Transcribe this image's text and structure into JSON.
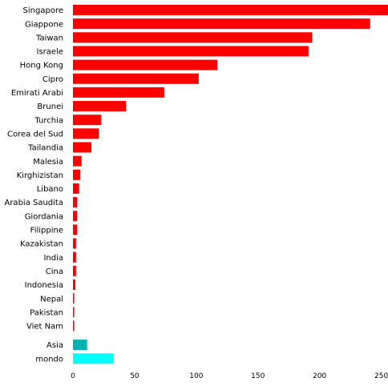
{
  "chart_data": {
    "type": "bar",
    "orientation": "horizontal",
    "title": "",
    "xlabel": "",
    "ylabel": "",
    "xlim": [
      0,
      260
    ],
    "grid": false,
    "legend": "none",
    "x_ticks": [
      "0",
      "50",
      "100",
      "150",
      "200",
      "250"
    ],
    "categories": [
      "Singapore",
      "Giappone",
      "Taiwan",
      "Israele",
      "Hong Kong",
      "Cipro",
      "Emirati Arabi",
      "Brunei",
      "Turchia",
      "Corea del Sud",
      "Tailandia",
      "Malesia",
      "Kirghizistan",
      "Libano",
      "Arabia Saudita",
      "Giordania",
      "Filippine",
      "Kazakistan",
      "India",
      "Cina",
      "Indonesia",
      "Nepal",
      "Pakistan",
      "Viet Nam",
      "Asia",
      "mondo"
    ],
    "values": [
      258,
      241,
      194,
      191,
      117,
      102,
      74,
      43,
      23,
      21,
      15,
      7,
      6,
      5,
      3.5,
      3.5,
      3.5,
      2.5,
      2.5,
      2.5,
      2,
      1,
      1,
      1,
      11.5,
      33
    ],
    "colors": [
      "#ff0000",
      "#ff0000",
      "#ff0000",
      "#ff0000",
      "#ff0000",
      "#ff0000",
      "#ff0000",
      "#ff0000",
      "#ff0000",
      "#ff0000",
      "#ff0000",
      "#ff0000",
      "#ff0000",
      "#ff0000",
      "#ff0000",
      "#ff0000",
      "#ff0000",
      "#ff0000",
      "#ff0000",
      "#ff0000",
      "#ff0000",
      "#ff0000",
      "#ff0000",
      "#ff0000",
      "#00b3b3",
      "#00ffff"
    ]
  }
}
